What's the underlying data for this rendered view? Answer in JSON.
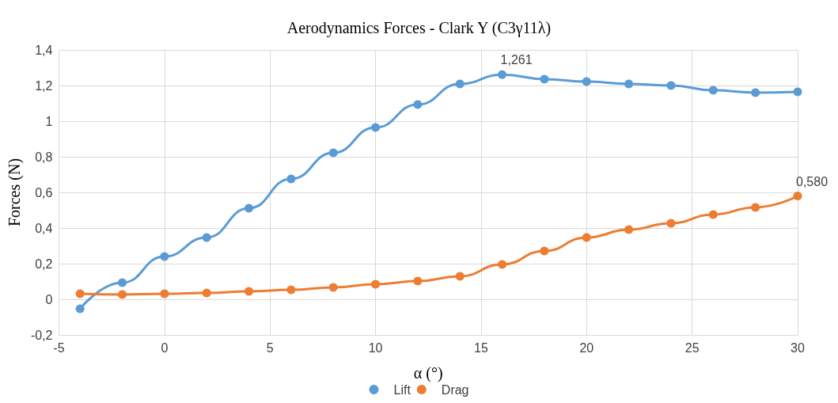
{
  "chart_data": {
    "type": "line",
    "title": "Aerodynamics Forces - Clark Y (C3γ11λ)",
    "xlabel": "α (°)",
    "ylabel": "Forces (N)",
    "x": [
      -4,
      -2,
      0,
      2,
      4,
      6,
      8,
      10,
      12,
      14,
      16,
      18,
      20,
      22,
      24,
      26,
      28,
      30
    ],
    "series": [
      {
        "name": "Lift",
        "color": "#5b9bd5",
        "values": [
          -0.053,
          0.093,
          0.24,
          0.347,
          0.511,
          0.676,
          0.822,
          0.964,
          1.093,
          1.209,
          1.261,
          1.236,
          1.222,
          1.209,
          1.2,
          1.173,
          1.16,
          1.164
        ],
        "value_labels": [
          null,
          null,
          null,
          null,
          null,
          null,
          null,
          null,
          null,
          null,
          "1,261",
          null,
          null,
          null,
          null,
          null,
          null,
          null
        ]
      },
      {
        "name": "Drag",
        "color": "#ed7d31",
        "values": [
          0.031,
          0.027,
          0.031,
          0.036,
          0.044,
          0.053,
          0.067,
          0.084,
          0.102,
          0.129,
          0.196,
          0.271,
          0.347,
          0.391,
          0.427,
          0.476,
          0.516,
          0.58
        ],
        "value_labels": [
          null,
          null,
          null,
          null,
          null,
          null,
          null,
          null,
          null,
          null,
          null,
          null,
          null,
          null,
          null,
          null,
          null,
          "0,580"
        ]
      }
    ],
    "xlim": [
      -5,
      30
    ],
    "xticks": [
      -5,
      0,
      5,
      10,
      15,
      20,
      25,
      30
    ],
    "ylim": [
      -0.2,
      1.4
    ],
    "yticks": [
      {
        "value": -0.2,
        "label": "-0,2"
      },
      0,
      {
        "value": 0.2,
        "label": "0,2"
      },
      {
        "value": 0.4,
        "label": "0,4"
      },
      {
        "value": 0.6,
        "label": "0,6"
      },
      {
        "value": 0.8,
        "label": "0,8"
      },
      1,
      {
        "value": 1.2,
        "label": "1,2"
      },
      {
        "value": 1.4,
        "label": "1,4"
      }
    ],
    "grid": true,
    "legend": "bottom",
    "marker": "circle",
    "line_style": "solid"
  }
}
